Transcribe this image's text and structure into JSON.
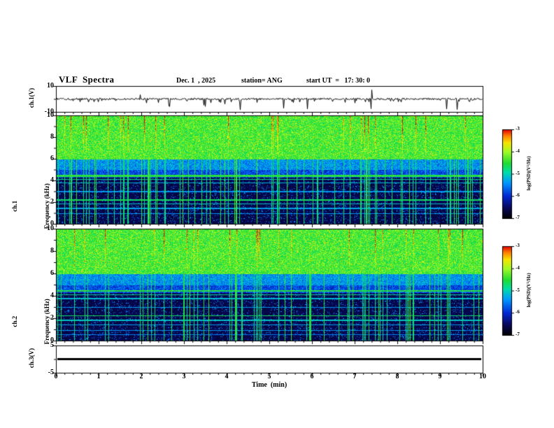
{
  "header": {
    "title": "VLF  Spectra",
    "date": "Dec. 1  , 2025",
    "station": "station= ANG",
    "start_ut": "start UT  =   17: 30: 0"
  },
  "panels": {
    "wave1": {
      "label": "ch.1(V)",
      "yticks": [
        "10",
        "-10"
      ]
    },
    "spec1": {
      "label1": "ch.1",
      "label2": "Frequency (kHz)",
      "yticks": [
        "10",
        "8",
        "6",
        "4",
        "2",
        "0"
      ]
    },
    "spec2": {
      "label1": "ch.2",
      "label2": "Frequency (kHz)",
      "yticks": [
        "10",
        "8",
        "6",
        "4",
        "2",
        "0"
      ]
    },
    "wave3": {
      "label": "ch.3(V)",
      "yticks": [
        "5",
        "-5"
      ]
    }
  },
  "xaxis": {
    "label": "Time  (min)",
    "ticks": [
      "0",
      "1",
      "2",
      "3",
      "4",
      "5",
      "6",
      "7",
      "8",
      "9",
      "10"
    ]
  },
  "colorbars": {
    "label": "log(PSD)(V²/Hz)",
    "ticks": [
      "-3",
      "-4",
      "-5",
      "-6",
      "-7"
    ],
    "gradient": [
      {
        "t": 0.0,
        "c": "#000000"
      },
      {
        "t": 0.12,
        "c": "#08085a"
      },
      {
        "t": 0.25,
        "c": "#0028d2"
      },
      {
        "t": 0.4,
        "c": "#0096ff"
      },
      {
        "t": 0.52,
        "c": "#00dcaa"
      },
      {
        "t": 0.62,
        "c": "#1edc32"
      },
      {
        "t": 0.75,
        "c": "#a0fa28"
      },
      {
        "t": 0.85,
        "c": "#f5e600"
      },
      {
        "t": 0.93,
        "c": "#ff8200"
      },
      {
        "t": 1.0,
        "c": "#e10000"
      }
    ]
  },
  "chart_data": [
    {
      "type": "line",
      "title": "ch.1(V) time series",
      "xlabel": "Time (min)",
      "xlim": [
        0,
        10
      ],
      "ylabel": "ch.1(V)",
      "ylim": [
        -10,
        10
      ],
      "description": "Broadband noisy trace centered near 0 V with many brief negative spikes of roughly 2-8 V and one large bipolar spike near 7.4 min"
    },
    {
      "type": "heatmap",
      "title": "ch.1 VLF spectrogram",
      "xlabel": "Time (min)",
      "xlim": [
        0,
        10
      ],
      "ylabel": "Frequency (kHz)",
      "ylim": [
        0,
        10
      ],
      "colorbar_label": "log(PSD)(V²/Hz)",
      "clim": [
        -7,
        -3
      ],
      "features": [
        "Intense broadband power (log PSD about -4.5 to -3) from 6-10 kHz with vertical red/yellow sferic bursts",
        "Moderate blue power (about -6 to -5.5) from 4-6 kHz",
        "Low power (about -7) below 4 kHz with narrowband horizontal emission lines near 4.4, 4.1, 3.8, 3.0, 2.25, 1.85, 1.45 and 0.95 kHz",
        "Numerous vertical green impulsive streaks (sferics) spanning all frequencies"
      ]
    },
    {
      "type": "heatmap",
      "title": "ch.2 VLF spectrogram",
      "xlabel": "Time (min)",
      "xlim": [
        0,
        10
      ],
      "ylabel": "Frequency (kHz)",
      "ylim": [
        0,
        10
      ],
      "colorbar_label": "log(PSD)(V²/Hz)",
      "clim": [
        -7,
        -3
      ],
      "features": [
        "Same structure as ch.1: intense 6-10 kHz band with red sferic streaks",
        "Blue 4-6 kHz band, dark sub-4 kHz region with horizontal narrowband lines",
        "Vertical green impulsive streaks across all frequencies"
      ]
    },
    {
      "type": "line",
      "title": "ch.3(V) time series",
      "xlabel": "Time (min)",
      "xlim": [
        0,
        10
      ],
      "ylabel": "ch.3(V)",
      "ylim": [
        -5,
        5
      ],
      "values_constant": 0,
      "description": "Flat thick line at 0 V for the whole interval"
    }
  ]
}
